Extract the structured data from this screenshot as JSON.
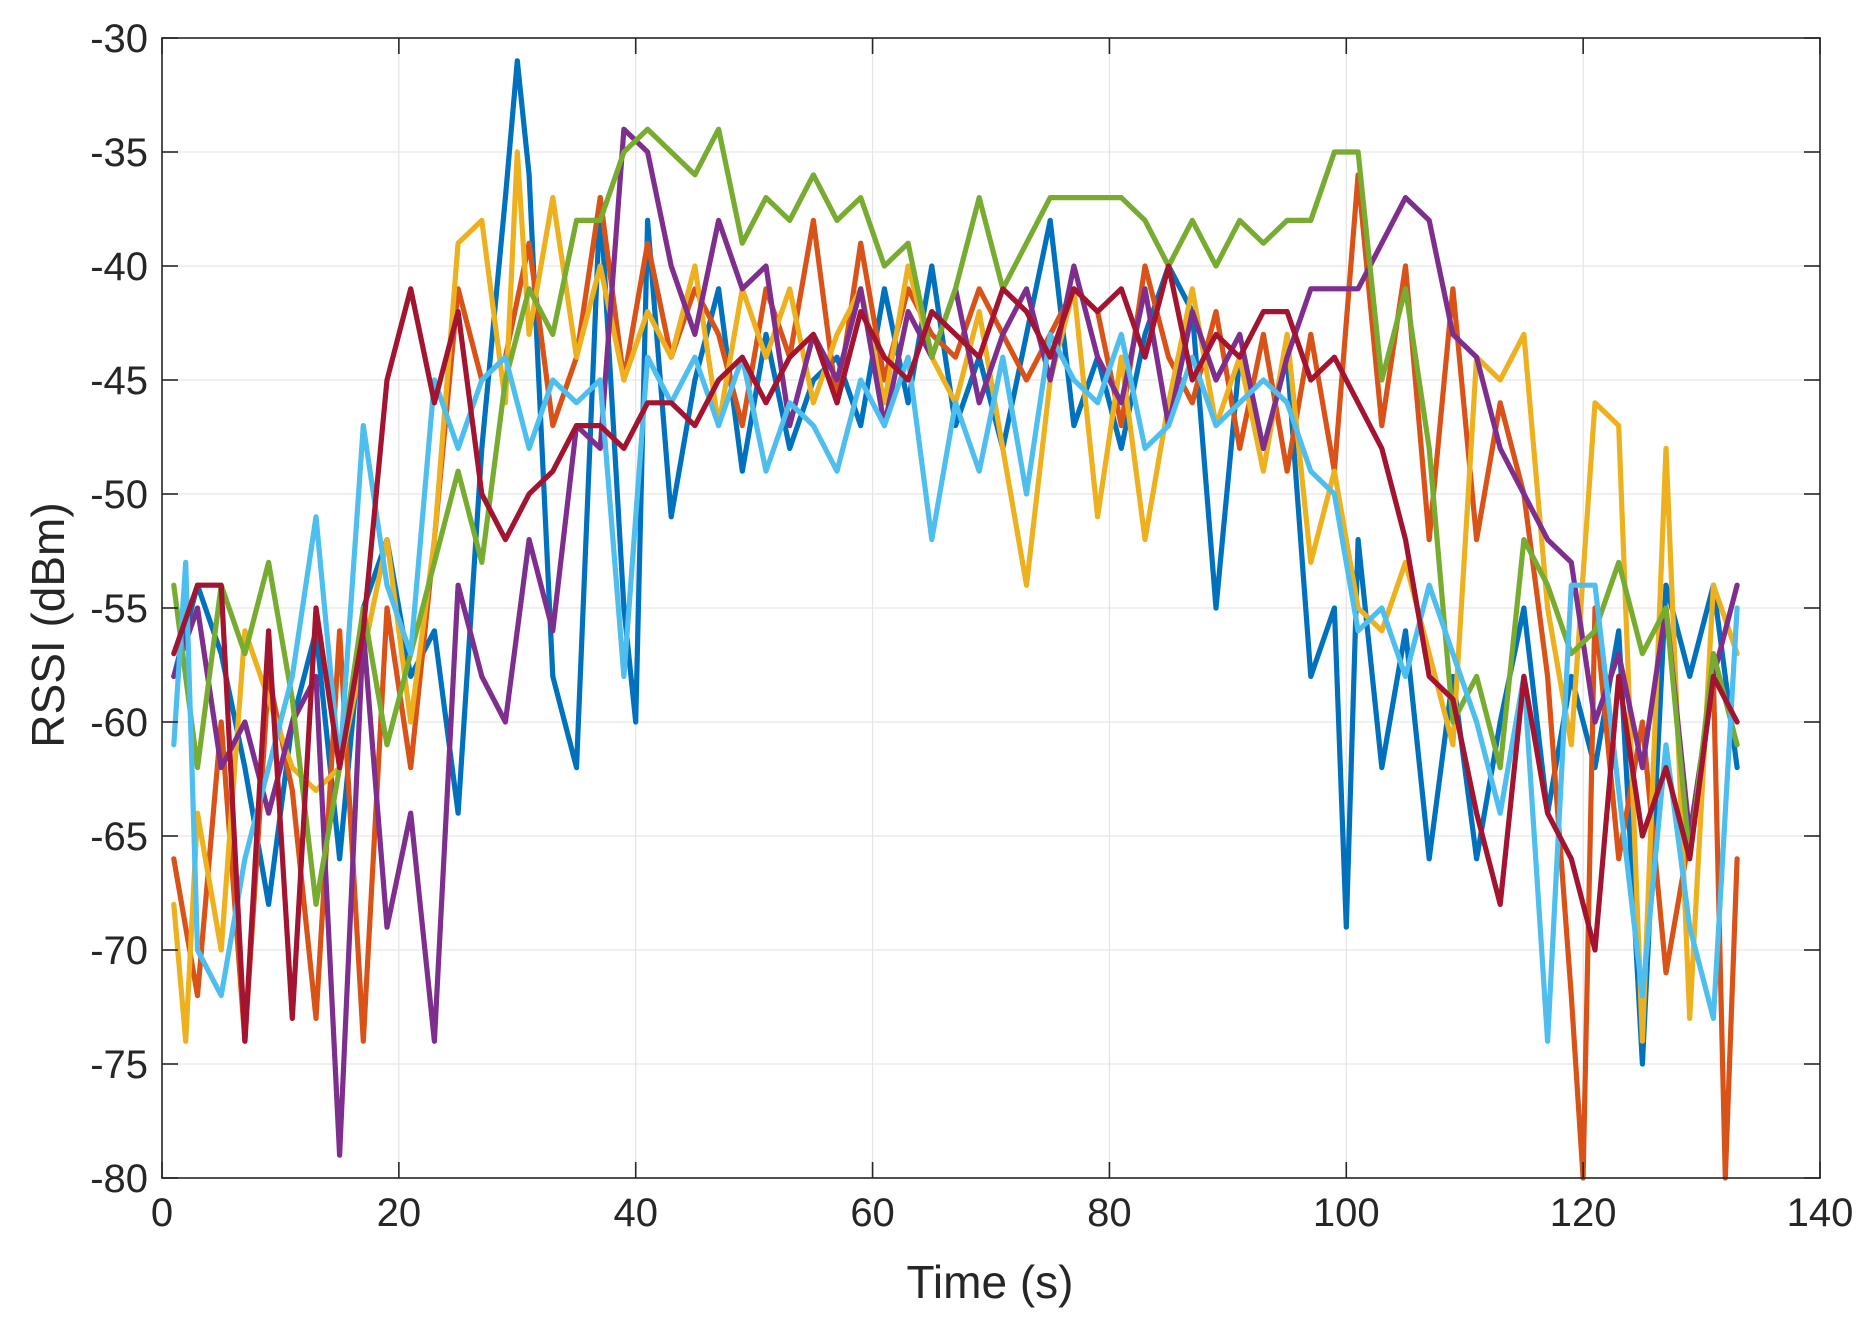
{
  "chart_data": {
    "type": "line",
    "title": "",
    "xlabel": "Time (s)",
    "ylabel": "RSSI (dBm)",
    "xlim": [
      0,
      140
    ],
    "ylim": [
      -80,
      -30
    ],
    "xticks": [
      0,
      20,
      40,
      60,
      80,
      100,
      120,
      140
    ],
    "yticks": [
      -80,
      -75,
      -70,
      -65,
      -60,
      -55,
      -50,
      -45,
      -40,
      -35,
      -30
    ],
    "xtick_labels": [
      "0",
      "20",
      "40",
      "60",
      "80",
      "100",
      "120",
      "140"
    ],
    "ytick_labels": [
      "-80",
      "-75",
      "-70",
      "-65",
      "-60",
      "-55",
      "-50",
      "-45",
      "-40",
      "-35",
      "-30"
    ],
    "grid": true,
    "legend": "none",
    "series": [
      {
        "color": "#0072BD",
        "x": [
          1,
          3,
          5,
          7,
          9,
          11,
          13,
          15,
          17,
          19,
          21,
          23,
          25,
          27,
          29,
          30,
          31,
          33,
          35,
          37,
          39,
          40,
          41,
          43,
          45,
          47,
          49,
          51,
          53,
          55,
          57,
          59,
          61,
          63,
          65,
          67,
          69,
          71,
          73,
          75,
          77,
          79,
          81,
          83,
          85,
          87,
          89,
          91,
          93,
          95,
          97,
          99,
          100,
          101,
          103,
          105,
          107,
          109,
          111,
          113,
          115,
          117,
          119,
          121,
          123,
          125,
          127,
          129,
          131,
          133
        ],
        "y": [
          -58,
          -54,
          -57,
          -62,
          -68,
          -60,
          -56,
          -66,
          -55,
          -52,
          -58,
          -56,
          -64,
          -48,
          -37,
          -31,
          -36,
          -58,
          -62,
          -37,
          -55,
          -60,
          -38,
          -51,
          -45,
          -41,
          -49,
          -43,
          -48,
          -45,
          -44,
          -47,
          -41,
          -46,
          -40,
          -47,
          -44,
          -48,
          -43,
          -38,
          -47,
          -44,
          -48,
          -43,
          -40,
          -42,
          -55,
          -44,
          -48,
          -44,
          -58,
          -55,
          -69,
          -52,
          -62,
          -56,
          -66,
          -58,
          -66,
          -60,
          -55,
          -64,
          -58,
          -62,
          -56,
          -75,
          -54,
          -58,
          -54,
          -62
        ]
      },
      {
        "color": "#D95319",
        "x": [
          1,
          3,
          5,
          7,
          9,
          11,
          13,
          15,
          17,
          19,
          21,
          23,
          25,
          27,
          29,
          31,
          33,
          35,
          37,
          39,
          41,
          43,
          45,
          47,
          49,
          51,
          53,
          55,
          57,
          59,
          61,
          63,
          65,
          67,
          69,
          71,
          73,
          75,
          77,
          79,
          81,
          83,
          85,
          87,
          89,
          91,
          93,
          95,
          97,
          99,
          101,
          103,
          105,
          107,
          109,
          111,
          113,
          115,
          117,
          119,
          120,
          121,
          123,
          125,
          127,
          129,
          131,
          132,
          133
        ],
        "y": [
          -66,
          -72,
          -60,
          -74,
          -58,
          -63,
          -73,
          -56,
          -74,
          -55,
          -62,
          -52,
          -41,
          -45,
          -44,
          -39,
          -47,
          -44,
          -37,
          -45,
          -39,
          -44,
          -41,
          -43,
          -47,
          -41,
          -44,
          -38,
          -46,
          -39,
          -45,
          -41,
          -43,
          -44,
          -41,
          -43,
          -45,
          -43,
          -41,
          -42,
          -47,
          -40,
          -44,
          -46,
          -42,
          -48,
          -43,
          -49,
          -43,
          -49,
          -36,
          -47,
          -40,
          -52,
          -41,
          -52,
          -46,
          -50,
          -58,
          -72,
          -80,
          -55,
          -66,
          -60,
          -71,
          -65,
          -58,
          -80,
          -66
        ]
      },
      {
        "color": "#EDB120",
        "x": [
          1,
          2,
          3,
          5,
          7,
          9,
          11,
          13,
          15,
          17,
          19,
          21,
          23,
          25,
          27,
          29,
          30,
          31,
          33,
          35,
          37,
          39,
          41,
          43,
          45,
          47,
          49,
          51,
          53,
          55,
          57,
          59,
          61,
          63,
          65,
          67,
          69,
          71,
          73,
          75,
          77,
          79,
          81,
          83,
          85,
          87,
          89,
          91,
          93,
          95,
          97,
          99,
          101,
          103,
          105,
          107,
          109,
          111,
          113,
          115,
          117,
          119,
          121,
          123,
          125,
          127,
          129,
          131,
          133
        ],
        "y": [
          -68,
          -74,
          -64,
          -70,
          -56,
          -59,
          -62,
          -63,
          -62,
          -57,
          -52,
          -60,
          -52,
          -39,
          -38,
          -46,
          -35,
          -43,
          -37,
          -44,
          -40,
          -45,
          -42,
          -44,
          -40,
          -47,
          -41,
          -44,
          -41,
          -46,
          -43,
          -41,
          -46,
          -40,
          -44,
          -46,
          -42,
          -48,
          -54,
          -45,
          -41,
          -51,
          -44,
          -52,
          -46,
          -41,
          -47,
          -44,
          -49,
          -43,
          -53,
          -49,
          -55,
          -56,
          -53,
          -57,
          -61,
          -44,
          -45,
          -43,
          -55,
          -61,
          -46,
          -47,
          -74,
          -48,
          -73,
          -54,
          -57
        ]
      },
      {
        "color": "#7E2F8E",
        "x": [
          1,
          3,
          5,
          7,
          9,
          11,
          13,
          15,
          17,
          19,
          21,
          23,
          25,
          27,
          29,
          31,
          33,
          35,
          37,
          39,
          41,
          43,
          45,
          47,
          49,
          51,
          53,
          55,
          57,
          59,
          61,
          63,
          65,
          67,
          69,
          71,
          73,
          75,
          77,
          79,
          81,
          83,
          85,
          87,
          89,
          91,
          93,
          95,
          97,
          99,
          101,
          103,
          105,
          107,
          109,
          111,
          113,
          115,
          117,
          119,
          121,
          123,
          125,
          127,
          129,
          131,
          133
        ],
        "y": [
          -58,
          -55,
          -62,
          -60,
          -64,
          -60,
          -58,
          -79,
          -56,
          -69,
          -64,
          -74,
          -54,
          -58,
          -60,
          -52,
          -56,
          -47,
          -48,
          -34,
          -35,
          -40,
          -43,
          -38,
          -41,
          -40,
          -47,
          -43,
          -45,
          -41,
          -47,
          -42,
          -44,
          -41,
          -46,
          -43,
          -41,
          -45,
          -40,
          -44,
          -46,
          -41,
          -47,
          -42,
          -45,
          -43,
          -48,
          -44,
          -41,
          -41,
          -41,
          -39,
          -37,
          -38,
          -43,
          -44,
          -48,
          -50,
          -52,
          -53,
          -60,
          -57,
          -62,
          -55,
          -65,
          -58,
          -54
        ]
      },
      {
        "color": "#77AC30",
        "x": [
          1,
          3,
          5,
          7,
          9,
          11,
          13,
          15,
          17,
          19,
          21,
          23,
          25,
          27,
          29,
          31,
          33,
          35,
          37,
          39,
          41,
          43,
          45,
          47,
          49,
          51,
          53,
          55,
          57,
          59,
          61,
          63,
          65,
          67,
          69,
          71,
          73,
          75,
          77,
          79,
          81,
          83,
          85,
          87,
          89,
          91,
          93,
          95,
          97,
          99,
          101,
          103,
          105,
          107,
          109,
          111,
          113,
          115,
          117,
          119,
          121,
          123,
          125,
          127,
          129,
          131,
          133
        ],
        "y": [
          -54,
          -62,
          -54,
          -57,
          -53,
          -59,
          -68,
          -62,
          -55,
          -61,
          -57,
          -53,
          -49,
          -53,
          -45,
          -41,
          -43,
          -38,
          -38,
          -35,
          -34,
          -35,
          -36,
          -34,
          -39,
          -37,
          -38,
          -36,
          -38,
          -37,
          -40,
          -39,
          -44,
          -41,
          -37,
          -41,
          -39,
          -37,
          -37,
          -37,
          -37,
          -38,
          -40,
          -38,
          -40,
          -38,
          -39,
          -38,
          -38,
          -35,
          -35,
          -45,
          -41,
          -48,
          -60,
          -58,
          -62,
          -52,
          -54,
          -57,
          -56,
          -53,
          -57,
          -55,
          -66,
          -57,
          -61
        ]
      },
      {
        "color": "#4DBEEE",
        "x": [
          1,
          2,
          3,
          5,
          7,
          9,
          11,
          13,
          15,
          17,
          19,
          21,
          23,
          25,
          27,
          29,
          31,
          33,
          35,
          37,
          39,
          41,
          43,
          45,
          47,
          49,
          51,
          53,
          55,
          57,
          59,
          61,
          63,
          65,
          67,
          69,
          71,
          73,
          75,
          77,
          79,
          81,
          83,
          85,
          87,
          89,
          91,
          93,
          95,
          97,
          99,
          101,
          103,
          105,
          107,
          109,
          111,
          113,
          115,
          117,
          119,
          121,
          123,
          125,
          127,
          129,
          131,
          133
        ],
        "y": [
          -61,
          -53,
          -70,
          -72,
          -66,
          -62,
          -58,
          -51,
          -62,
          -47,
          -54,
          -57,
          -45,
          -48,
          -45,
          -44,
          -48,
          -45,
          -46,
          -45,
          -58,
          -44,
          -46,
          -44,
          -47,
          -44,
          -49,
          -46,
          -47,
          -49,
          -45,
          -47,
          -44,
          -52,
          -46,
          -49,
          -44,
          -50,
          -43,
          -45,
          -46,
          -43,
          -48,
          -47,
          -44,
          -47,
          -46,
          -45,
          -46,
          -49,
          -50,
          -56,
          -55,
          -58,
          -54,
          -57,
          -60,
          -64,
          -58,
          -74,
          -54,
          -54,
          -63,
          -72,
          -61,
          -69,
          -73,
          -55
        ]
      },
      {
        "color": "#A2142F",
        "x": [
          1,
          3,
          5,
          7,
          9,
          11,
          13,
          15,
          17,
          19,
          21,
          23,
          25,
          27,
          29,
          31,
          33,
          35,
          37,
          39,
          41,
          43,
          45,
          47,
          49,
          51,
          53,
          55,
          57,
          59,
          61,
          63,
          65,
          67,
          69,
          71,
          73,
          75,
          77,
          79,
          81,
          83,
          85,
          87,
          89,
          91,
          93,
          95,
          97,
          99,
          101,
          103,
          105,
          107,
          109,
          111,
          113,
          115,
          117,
          119,
          121,
          123,
          125,
          127,
          129,
          131,
          133
        ],
        "y": [
          -57,
          -54,
          -54,
          -74,
          -56,
          -73,
          -55,
          -62,
          -56,
          -45,
          -41,
          -46,
          -42,
          -50,
          -52,
          -50,
          -49,
          -47,
          -47,
          -48,
          -46,
          -46,
          -47,
          -45,
          -44,
          -46,
          -44,
          -43,
          -46,
          -42,
          -44,
          -45,
          -42,
          -43,
          -44,
          -41,
          -42,
          -44,
          -41,
          -42,
          -41,
          -44,
          -40,
          -45,
          -43,
          -44,
          -42,
          -42,
          -45,
          -44,
          -46,
          -48,
          -52,
          -58,
          -59,
          -64,
          -68,
          -58,
          -64,
          -66,
          -70,
          -58,
          -65,
          -62,
          -66,
          -58,
          -60
        ]
      }
    ]
  }
}
